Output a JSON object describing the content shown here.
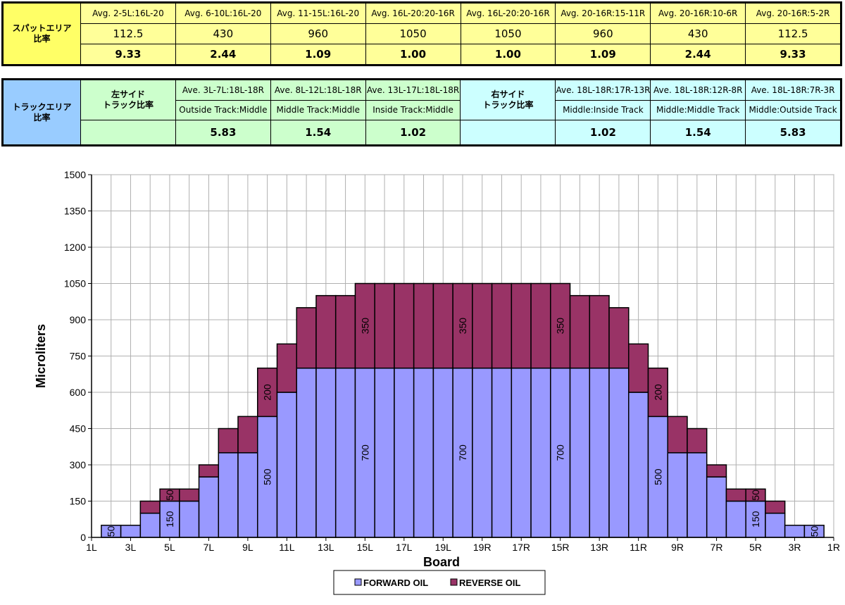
{
  "spot_area": {
    "label": "スパットエリア\n比率",
    "headers": [
      "Avg. 2-5L:16L-20",
      "Avg. 6-10L:16L-20",
      "Avg. 11-15L:16L-20",
      "Avg. 16L-20:20-16R",
      "Avg. 16L-20:20-16R",
      "Avg. 20-16R:15-11R",
      "Avg. 20-16R:10-6R",
      "Avg. 20-16R:5-2R"
    ],
    "values": [
      "112.5",
      "430",
      "960",
      "1050",
      "1050",
      "960",
      "430",
      "112.5"
    ],
    "ratios": [
      "9.33",
      "2.44",
      "1.09",
      "1.00",
      "1.00",
      "1.09",
      "2.44",
      "9.33"
    ]
  },
  "track_area": {
    "label": "トラックエリア\n比率",
    "left_label": "左サイド\nトラック比率",
    "right_label": "右サイド\nトラック比率",
    "left": {
      "headers": [
        "Ave. 3L-7L:18L-18R",
        "Ave. 8L-12L:18L-18R",
        "Ave. 13L-17L:18L-18R"
      ],
      "descriptions": [
        "Outside Track:Middle",
        "Middle Track:Middle",
        "Inside Track:Middle"
      ],
      "ratios": [
        "5.83",
        "1.54",
        "1.02"
      ]
    },
    "right": {
      "headers": [
        "Ave. 18L-18R:17R-13R",
        "Ave. 18L-18R:12R-8R",
        "Ave. 18L-18R:7R-3R"
      ],
      "descriptions": [
        "Middle:Inside Track",
        "Middle:Middle Track",
        "Middle:Outside Track"
      ],
      "ratios": [
        "1.02",
        "1.54",
        "5.83"
      ]
    }
  },
  "chart_data": {
    "type": "bar",
    "stacked": true,
    "categories": [
      "1L",
      "2L",
      "3L",
      "4L",
      "5L",
      "6L",
      "7L",
      "8L",
      "9L",
      "10L",
      "11L",
      "12L",
      "13L",
      "14L",
      "15L",
      "16L",
      "17L",
      "18L",
      "19L",
      "20",
      "19R",
      "18R",
      "17R",
      "16R",
      "15R",
      "14R",
      "13R",
      "12R",
      "11R",
      "10R",
      "9R",
      "8R",
      "7R",
      "6R",
      "5R",
      "4R",
      "3R",
      "2R",
      "1R"
    ],
    "tick_labels": [
      "1L",
      "3L",
      "5L",
      "7L",
      "9L",
      "11L",
      "13L",
      "15L",
      "17L",
      "19L",
      "19R",
      "17R",
      "15R",
      "13R",
      "11R",
      "9R",
      "7R",
      "5R",
      "3R",
      "1R"
    ],
    "series": [
      {
        "name": "FORWARD OIL",
        "color": "#9999ff",
        "values": [
          0,
          50,
          50,
          100,
          150,
          150,
          250,
          350,
          350,
          500,
          600,
          700,
          700,
          700,
          700,
          700,
          700,
          700,
          700,
          700,
          700,
          700,
          700,
          700,
          700,
          700,
          700,
          700,
          600,
          500,
          350,
          350,
          250,
          150,
          150,
          100,
          50,
          50,
          0
        ]
      },
      {
        "name": "REVERSE OIL",
        "color": "#993366",
        "values": [
          0,
          0,
          0,
          50,
          50,
          50,
          50,
          100,
          150,
          200,
          200,
          250,
          300,
          300,
          350,
          350,
          350,
          350,
          350,
          350,
          350,
          350,
          350,
          350,
          350,
          300,
          300,
          250,
          200,
          200,
          150,
          100,
          50,
          50,
          50,
          50,
          0,
          0,
          0
        ]
      }
    ],
    "data_labels": [
      {
        "text": "50",
        "category": "2L",
        "series": "FORWARD OIL"
      },
      {
        "text": "50",
        "category": "5L",
        "series": "REVERSE OIL"
      },
      {
        "text": "150",
        "category": "5L",
        "series": "FORWARD OIL"
      },
      {
        "text": "500",
        "category": "10L",
        "series": "FORWARD OIL"
      },
      {
        "text": "200",
        "category": "10L",
        "series": "REVERSE OIL"
      },
      {
        "text": "350",
        "category": "15L",
        "series": "REVERSE OIL"
      },
      {
        "text": "700",
        "category": "15L",
        "series": "FORWARD OIL"
      },
      {
        "text": "350",
        "category": "20",
        "series": "REVERSE OIL"
      },
      {
        "text": "700",
        "category": "20",
        "series": "FORWARD OIL"
      },
      {
        "text": "350",
        "category": "15R",
        "series": "REVERSE OIL"
      },
      {
        "text": "700",
        "category": "15R",
        "series": "FORWARD OIL"
      },
      {
        "text": "500",
        "category": "10R",
        "series": "FORWARD OIL"
      },
      {
        "text": "200",
        "category": "10R",
        "series": "REVERSE OIL"
      },
      {
        "text": "150",
        "category": "5R",
        "series": "FORWARD OIL"
      },
      {
        "text": "50",
        "category": "5R",
        "series": "REVERSE OIL"
      },
      {
        "text": "50",
        "category": "2R",
        "series": "FORWARD OIL"
      }
    ],
    "xlabel": "Board",
    "ylabel": "Microliters",
    "ylim": [
      0,
      1500
    ],
    "yticks": [
      "0",
      "150",
      "300",
      "450",
      "600",
      "750",
      "900",
      "1050",
      "1200",
      "1350",
      "1500"
    ],
    "grid": true,
    "legend_position": "bottom"
  }
}
